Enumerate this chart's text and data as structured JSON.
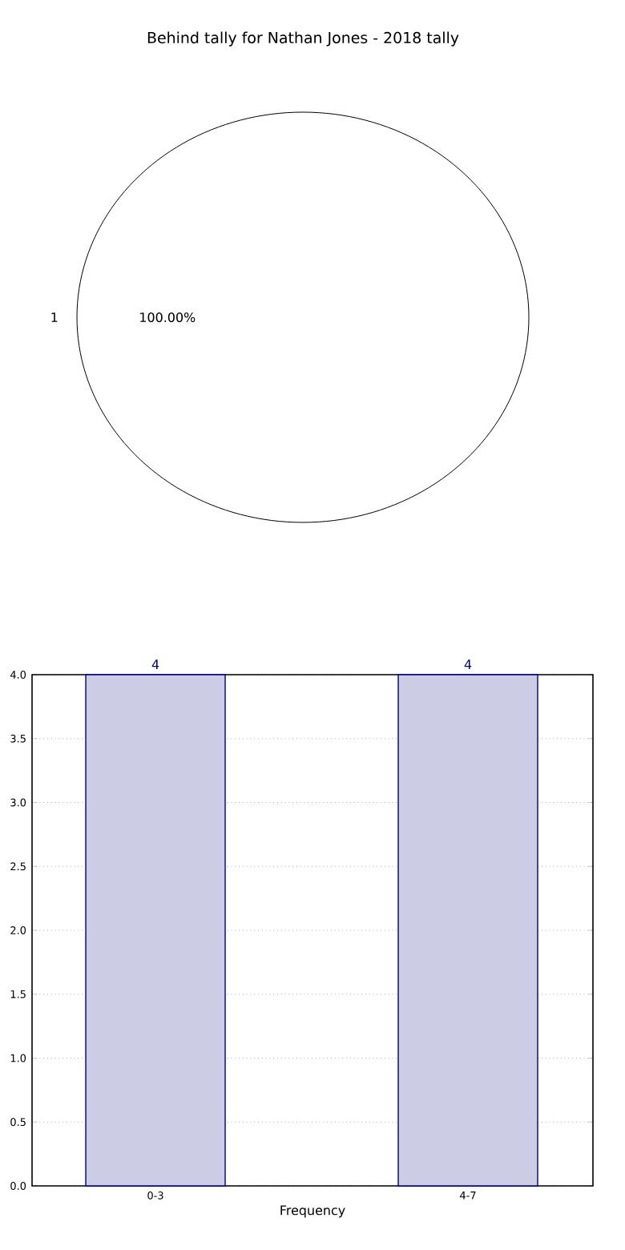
{
  "chart_data": [
    {
      "type": "pie",
      "title": "Behind tally for Nathan Jones - 2018 tally",
      "categories": [
        "1"
      ],
      "values": [
        100
      ],
      "colors": [
        "#ffffff"
      ],
      "value_labels": [
        "100.00%"
      ]
    },
    {
      "type": "bar",
      "xlabel": "Frequency",
      "categories": [
        "0-3",
        "4-7"
      ],
      "values": [
        4,
        4
      ],
      "color": "#cccce5",
      "data_labels": true,
      "grid": true,
      "ylim": [
        0,
        4
      ],
      "yticks": [
        {
          "value": 0,
          "label": "0.0"
        },
        {
          "value": 0.5,
          "label": "0.5"
        },
        {
          "value": 1,
          "label": "1.0"
        },
        {
          "value": 1.5,
          "label": "1.5"
        },
        {
          "value": 2,
          "label": "2.0"
        },
        {
          "value": 2.5,
          "label": "2.5"
        },
        {
          "value": 3,
          "label": "3.0"
        },
        {
          "value": 3.5,
          "label": "3.5"
        },
        {
          "value": 4,
          "label": "4.0"
        }
      ]
    }
  ]
}
